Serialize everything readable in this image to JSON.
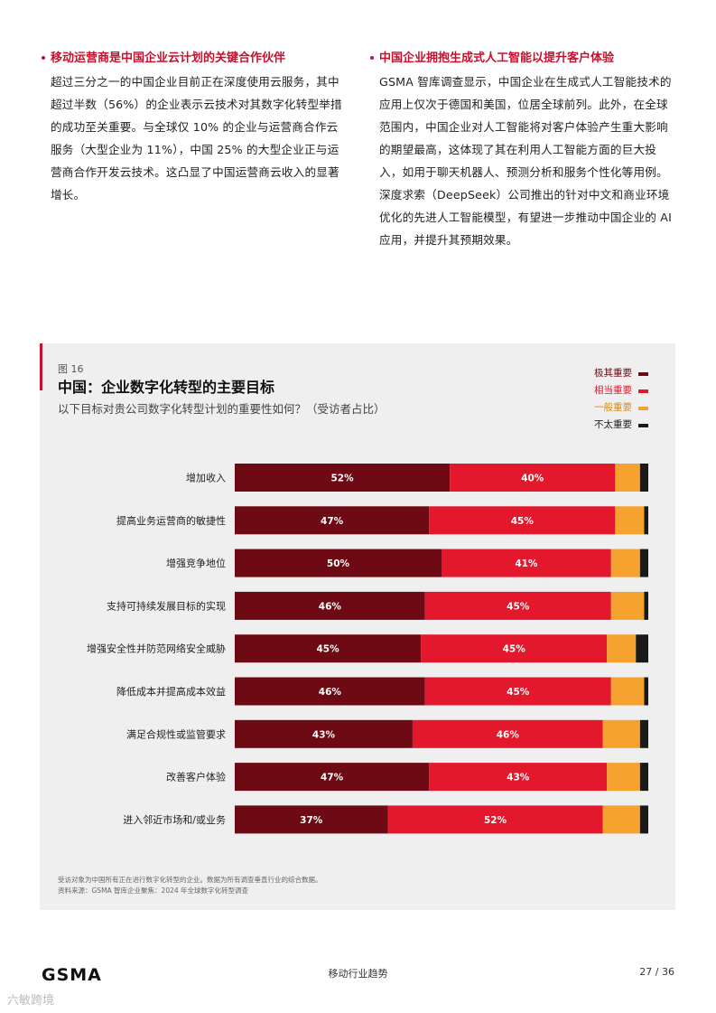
{
  "left_section": {
    "title": "移动运营商是中国企业云计划的关键合作伙伴",
    "body": "超过三分之一的中国企业目前正在深度使用云服务，其中超过半数（56%）的企业表示云技术对其数字化转型举措的成功至关重要。与全球仅 10% 的企业与运营商合作云服务（大型企业为 11%），中国 25% 的大型企业正与运营商合作开发云技术。这凸显了中国运营商云收入的显著增长。"
  },
  "right_section": {
    "title": "中国企业拥抱生成式人工智能以提升客户体验",
    "body": "GSMA 智库调查显示，中国企业在生成式人工智能技术的应用上仅次于德国和美国，位居全球前列。此外，在全球范围内，中国企业对人工智能将对客户体验产生重大影响的期望最高，这体现了其在利用人工智能方面的巨大投入，如用于聊天机器人、预测分析和服务个性化等用例。深度求索（DeepSeek）公司推出的针对中文和商业环境优化的先进人工智能模型，有望进一步推动中国企业的 AI 应用，并提升其预期效果。"
  },
  "figure": {
    "label": "图 16",
    "title": "中国：企业数字化转型的主要目标",
    "subtitle": "以下目标对贵公司数字化转型计划的重要性如何？（受访者占比）"
  },
  "chart_data": {
    "type": "bar",
    "orientation": "horizontal-stacked",
    "categories": [
      "增加收入",
      "提高业务运营商的敏捷性",
      "增强竞争地位",
      "支持可持续发展目标的实现",
      "增强安全性并防范网络安全威胁",
      "降低成本并提高成本效益",
      "满足合规性或监管要求",
      "改善客户体验",
      "进入邻近市场和/或业务"
    ],
    "series": [
      {
        "name": "极其重要",
        "color": "#6e0a14",
        "values": [
          52,
          47,
          50,
          46,
          45,
          46,
          43,
          47,
          37
        ]
      },
      {
        "name": "相当重要",
        "color": "#e3182d",
        "values": [
          40,
          45,
          41,
          45,
          45,
          45,
          46,
          43,
          52
        ]
      },
      {
        "name": "一般重要",
        "color": "#f5a22f",
        "values": [
          6,
          7,
          7,
          8,
          7,
          8,
          9,
          8,
          9
        ]
      },
      {
        "name": "不太重要",
        "color": "#1a1a1a",
        "values": [
          2,
          1,
          2,
          1,
          3,
          1,
          2,
          2,
          2
        ]
      }
    ],
    "data_labels": [
      [
        "52%",
        "47%",
        "50%",
        "46%",
        "45%",
        "46%",
        "43%",
        "47%",
        "37%"
      ],
      [
        "40%",
        "45%",
        "41%",
        "45%",
        "45%",
        "45%",
        "46%",
        "43%",
        "52%"
      ]
    ],
    "xlim": [
      0,
      100
    ],
    "legend_position": "top-right",
    "grid": false
  },
  "footnote": {
    "line1": "受访对象为中国所有正在进行数字化转型的企业。数据为所有调查垂直行业的综合数据。",
    "line2": "资料来源：GSMA 智库企业聚焦：2024 年全球数字化转型调查"
  },
  "footer": {
    "logo": "GSMA",
    "center": "移动行业趋势",
    "page": "27 / 36"
  },
  "watermark": "六敏跨境"
}
